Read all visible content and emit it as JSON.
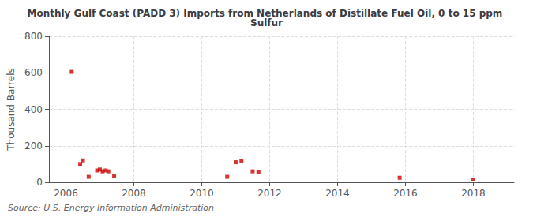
{
  "chart_data": {
    "type": "scatter",
    "title": "Monthly Gulf Coast (PADD 3) Imports from Netherlands of Distillate Fuel Oil, 0 to 15 ppm Sulfur",
    "ylabel": "Thousand Barrels",
    "annotation": "Source: U.S. Energy Information Administration",
    "x": [
      2006.17,
      2006.42,
      2006.5,
      2006.67,
      2006.92,
      2007.0,
      2007.08,
      2007.17,
      2007.25,
      2007.42,
      2010.75,
      2011.0,
      2011.17,
      2011.5,
      2011.67,
      2015.83,
      2018.0
    ],
    "values": [
      605,
      100,
      120,
      30,
      65,
      70,
      60,
      65,
      60,
      35,
      30,
      110,
      115,
      60,
      55,
      25,
      15
    ],
    "color": "#cc0000",
    "marker": "square",
    "xlim": [
      2005.5,
      2019.2
    ],
    "xticks": [
      2006,
      2008,
      2010,
      2012,
      2014,
      2016,
      2018
    ],
    "ylim": [
      0,
      800
    ],
    "yticks": [
      0,
      200,
      400,
      600,
      800
    ],
    "grid": true
  }
}
